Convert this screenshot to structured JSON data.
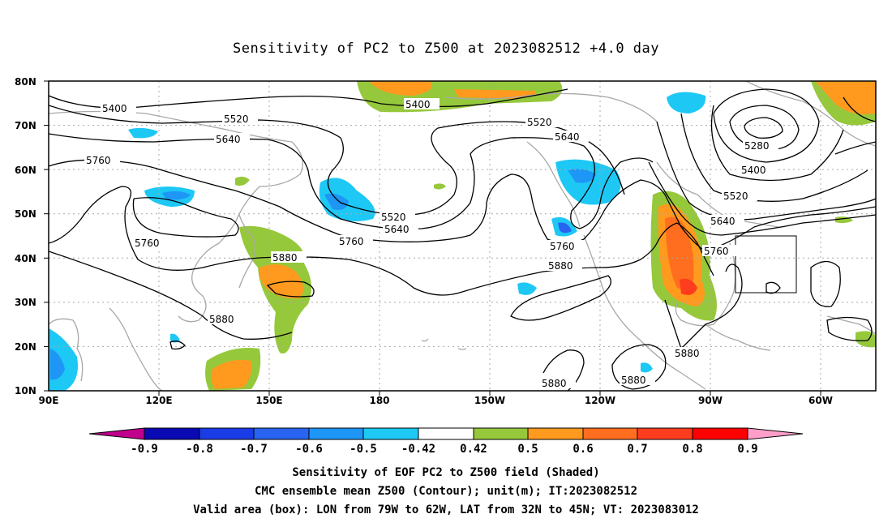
{
  "title": "Sensitivity of PC2 to Z500 at 2023082512 +4.0 day",
  "lat_ticks": [
    "80N",
    "70N",
    "60N",
    "50N",
    "40N",
    "30N",
    "20N",
    "10N"
  ],
  "lon_ticks": [
    "90E",
    "120E",
    "150E",
    "180",
    "150W",
    "120W",
    "90W",
    "60W"
  ],
  "contour_labels": [
    "5400",
    "5520",
    "5640",
    "5760",
    "5880",
    "5400",
    "5520",
    "5640",
    "5280",
    "5400",
    "5520",
    "5640",
    "5760",
    "5760",
    "5880",
    "5760",
    "5880",
    "5880",
    "5880",
    "5880"
  ],
  "colorbar": {
    "labels": [
      "-0.9",
      "-0.8",
      "-0.7",
      "-0.6",
      "-0.5",
      "-0.42",
      "0.42",
      "0.5",
      "0.6",
      "0.7",
      "0.8",
      "0.9"
    ],
    "colors": [
      "#c0008c",
      "#0a0ab4",
      "#1a3ce6",
      "#2864f0",
      "#1e96f5",
      "#1ec8f5",
      "#ffffff",
      "#96c83c",
      "#ff9a1e",
      "#ff6e1e",
      "#ff3c1e",
      "#ff0000",
      "#ff9ec8"
    ]
  },
  "footer": [
    "Sensitivity of EOF PC2 to Z500 field (Shaded)",
    "CMC ensemble mean Z500 (Contour); unit(m); IT:2023082512",
    "Valid area (box): LON from 79W to 62W, LAT from 32N to 45N; VT: 2023083012"
  ]
}
